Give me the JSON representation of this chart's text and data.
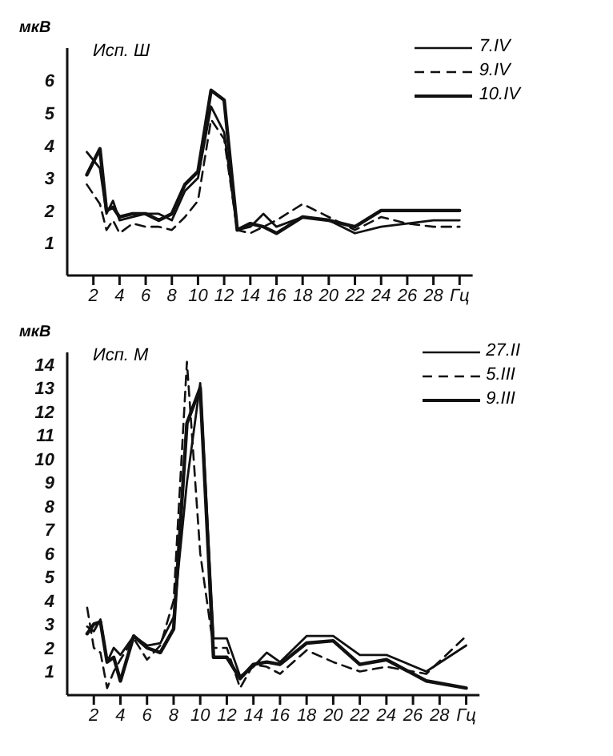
{
  "chart_data": [
    {
      "type": "line",
      "title": "Исп. Ш",
      "ylabel": "мкВ",
      "xlim": [
        0,
        31
      ],
      "ylim": [
        0,
        7
      ],
      "xticks": [
        2,
        4,
        6,
        8,
        10,
        12,
        14,
        16,
        18,
        20,
        22,
        24,
        26,
        28,
        {
          "value": 30,
          "label": "Гц"
        }
      ],
      "yticks": [
        1,
        2,
        3,
        4,
        5,
        6
      ],
      "grid": false,
      "legend": "top right",
      "marker": "none",
      "series": [
        {
          "name": "7.IV",
          "color": "#111111",
          "line_style": "solid",
          "x": [
            1.5,
            2.5,
            3,
            3.5,
            4,
            5,
            6,
            7,
            8,
            9,
            10,
            11,
            12,
            13,
            14,
            15,
            16,
            18,
            20,
            22,
            24,
            26,
            28,
            30
          ],
          "values": [
            3.8,
            3.3,
            1.9,
            2.3,
            1.7,
            1.8,
            1.9,
            1.9,
            1.7,
            2.6,
            3.0,
            5.2,
            4.4,
            1.4,
            1.5,
            1.9,
            1.5,
            1.8,
            1.7,
            1.3,
            1.5,
            1.6,
            1.7,
            1.7
          ]
        },
        {
          "name": "9.IV",
          "color": "#111111",
          "line_style": "dashed",
          "x": [
            1.5,
            2.5,
            3,
            3.5,
            4,
            5,
            6,
            7,
            8,
            9,
            10,
            11,
            12,
            13,
            14,
            15,
            16,
            18,
            20,
            22,
            24,
            26,
            28,
            30
          ],
          "values": [
            2.8,
            2.2,
            1.4,
            1.7,
            1.3,
            1.6,
            1.5,
            1.5,
            1.4,
            1.8,
            2.3,
            4.8,
            4.2,
            1.4,
            1.3,
            1.5,
            1.7,
            2.2,
            1.8,
            1.4,
            1.8,
            1.6,
            1.5,
            1.5
          ]
        },
        {
          "name": "10.IV",
          "color": "#111111",
          "line_style": "solid",
          "x": [
            1.5,
            2.5,
            3,
            3.5,
            4,
            5,
            6,
            7,
            8,
            9,
            10,
            11,
            12,
            13,
            14,
            15,
            16,
            18,
            20,
            22,
            24,
            26,
            28,
            30
          ],
          "values": [
            3.1,
            3.9,
            2.0,
            2.1,
            1.8,
            1.9,
            1.9,
            1.7,
            1.9,
            2.8,
            3.2,
            5.7,
            5.4,
            1.4,
            1.6,
            1.5,
            1.3,
            1.8,
            1.7,
            1.5,
            2.0,
            2.0,
            2.0,
            2.0
          ]
        }
      ]
    },
    {
      "type": "line",
      "title": "Исп. М",
      "ylabel": "мкВ",
      "xlim": [
        0,
        31
      ],
      "ylim": [
        0,
        14.5
      ],
      "xticks": [
        2,
        4,
        6,
        8,
        10,
        12,
        14,
        16,
        18,
        20,
        22,
        24,
        26,
        28,
        {
          "value": 30,
          "label": "Гц"
        }
      ],
      "yticks": [
        1,
        2,
        3,
        4,
        5,
        6,
        7,
        8,
        9,
        10,
        11,
        12,
        13,
        14
      ],
      "grid": false,
      "legend": "top right",
      "marker": "none",
      "series": [
        {
          "name": "27.II",
          "color": "#111111",
          "line_style": "solid",
          "x": [
            1.5,
            2,
            2.5,
            3,
            3.5,
            4,
            5,
            6,
            7,
            8,
            9,
            10,
            11,
            12,
            13,
            14,
            15,
            16,
            18,
            20,
            22,
            24,
            27,
            30
          ],
          "values": [
            2.9,
            2.7,
            3.2,
            1.4,
            2.0,
            1.7,
            2.5,
            2.1,
            2.2,
            3.3,
            9.0,
            13.2,
            2.4,
            2.4,
            0.8,
            1.2,
            1.8,
            1.4,
            2.5,
            2.5,
            1.7,
            1.7,
            1.0,
            2.1
          ]
        },
        {
          "name": "5.III",
          "color": "#111111",
          "line_style": "dashed",
          "x": [
            1.5,
            2,
            2.5,
            3,
            3.5,
            4,
            5,
            6,
            7,
            8,
            9,
            10,
            11,
            12,
            13,
            14,
            15,
            16,
            18,
            20,
            22,
            24,
            27,
            30
          ],
          "values": [
            3.7,
            2.0,
            1.8,
            0.3,
            1.0,
            1.5,
            2.4,
            1.5,
            2.1,
            4.0,
            14.1,
            6.0,
            2.0,
            2.0,
            0.3,
            1.3,
            1.2,
            0.9,
            1.9,
            1.4,
            1.0,
            1.2,
            0.9,
            2.5
          ]
        },
        {
          "name": "9.III",
          "color": "#111111",
          "line_style": "solid",
          "x": [
            1.5,
            2,
            2.5,
            3,
            3.5,
            4,
            5,
            6,
            7,
            8,
            9,
            10,
            11,
            12,
            13,
            14,
            15,
            16,
            18,
            20,
            22,
            24,
            27,
            30
          ],
          "values": [
            2.6,
            3.0,
            3.1,
            1.4,
            1.6,
            0.6,
            2.5,
            2.0,
            1.8,
            2.8,
            11.5,
            13.0,
            1.6,
            1.6,
            0.7,
            1.3,
            1.4,
            1.3,
            2.2,
            2.3,
            1.3,
            1.5,
            0.6,
            0.3
          ]
        }
      ]
    }
  ]
}
